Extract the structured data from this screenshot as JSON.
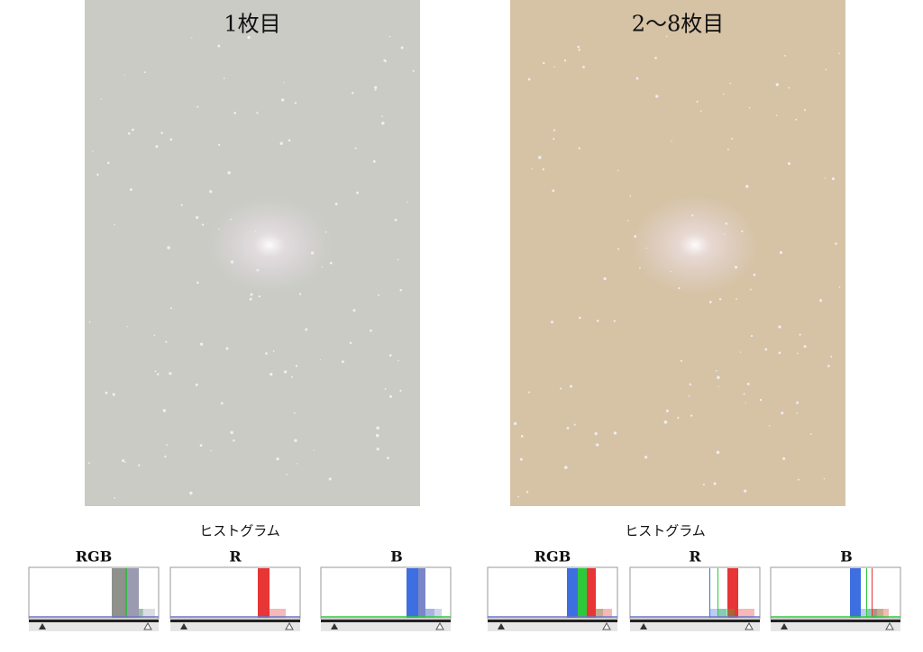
{
  "panels": [
    {
      "title": "1枚目",
      "histogram_title": "ヒストグラム",
      "histograms": [
        "RGB",
        "R",
        "B"
      ]
    },
    {
      "title": "2〜8枚目",
      "histogram_title": "ヒストグラム",
      "histograms": [
        "RGB",
        "R",
        "B"
      ]
    }
  ]
}
